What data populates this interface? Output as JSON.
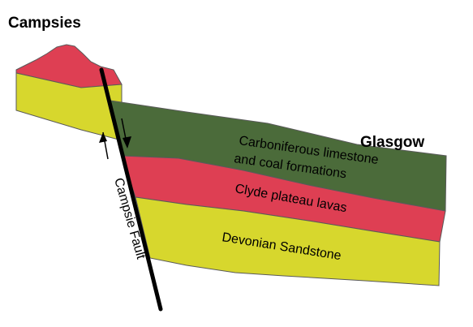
{
  "labels": {
    "campsies": "Campsies",
    "glasgow": "Glasgow",
    "fault": "Campsie Fault"
  },
  "layers": {
    "carboniferous": {
      "line1": "Carboniferous limestone",
      "line2": "and coal formations",
      "color": "#4b6b3a"
    },
    "lavas": {
      "label": "Clyde plateau lavas",
      "color": "#de3f53"
    },
    "sandstone": {
      "label": "Devonian Sandstone",
      "color": "#d7d72d"
    }
  },
  "fault_line_color": "#000000"
}
